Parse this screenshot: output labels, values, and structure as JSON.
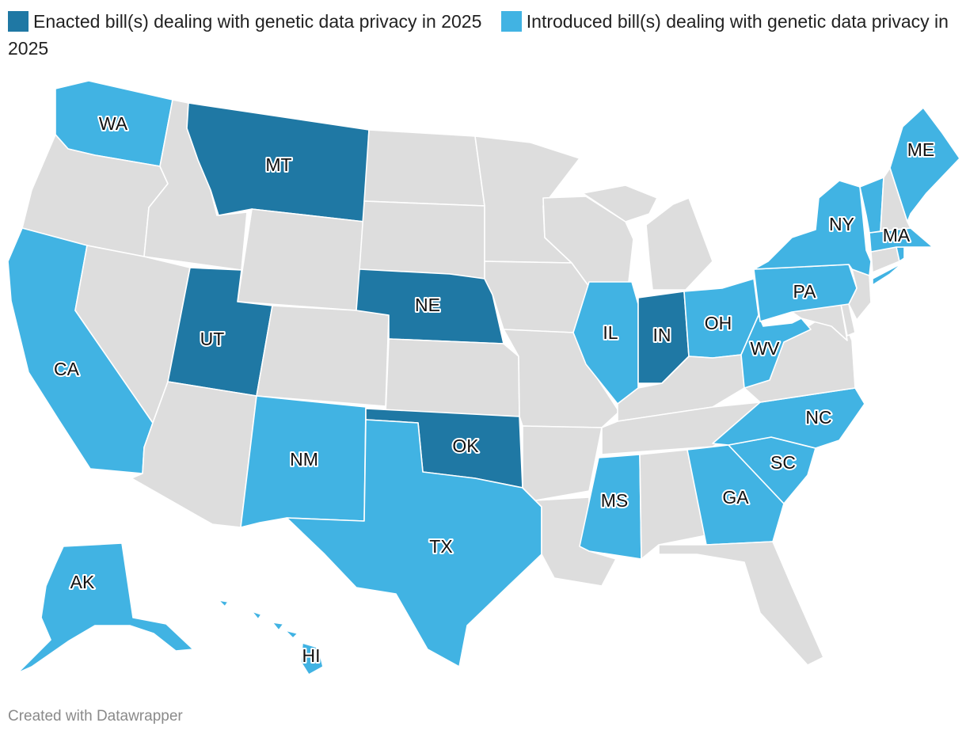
{
  "colors": {
    "enacted": "#1f78a4",
    "introduced": "#41b3e3",
    "none": "#dddddd",
    "label_text": "#111111",
    "label_halo": "#ffffff"
  },
  "legend": {
    "enacted": "Enacted bill(s) dealing with genetic data privacy in 2025",
    "introduced": "Introduced bill(s) dealing with genetic data privacy in 2025"
  },
  "credit": "Created with Datawrapper",
  "chart_data": {
    "type": "choropleth",
    "title": "",
    "categories": [
      "enacted",
      "introduced",
      "none"
    ],
    "states": [
      {
        "id": "WA",
        "status": "introduced",
        "label": "WA"
      },
      {
        "id": "OR",
        "status": "none",
        "label": ""
      },
      {
        "id": "CA",
        "status": "introduced",
        "label": "CA"
      },
      {
        "id": "ID",
        "status": "none",
        "label": ""
      },
      {
        "id": "NV",
        "status": "none",
        "label": ""
      },
      {
        "id": "MT",
        "status": "enacted",
        "label": "MT"
      },
      {
        "id": "WY",
        "status": "none",
        "label": ""
      },
      {
        "id": "UT",
        "status": "enacted",
        "label": "UT"
      },
      {
        "id": "AZ",
        "status": "none",
        "label": ""
      },
      {
        "id": "CO",
        "status": "none",
        "label": ""
      },
      {
        "id": "NM",
        "status": "introduced",
        "label": "NM"
      },
      {
        "id": "ND",
        "status": "none",
        "label": ""
      },
      {
        "id": "SD",
        "status": "none",
        "label": ""
      },
      {
        "id": "NE",
        "status": "enacted",
        "label": "NE"
      },
      {
        "id": "KS",
        "status": "none",
        "label": ""
      },
      {
        "id": "OK",
        "status": "enacted",
        "label": "OK"
      },
      {
        "id": "TX",
        "status": "introduced",
        "label": "TX"
      },
      {
        "id": "MN",
        "status": "none",
        "label": ""
      },
      {
        "id": "IA",
        "status": "none",
        "label": ""
      },
      {
        "id": "MO",
        "status": "none",
        "label": ""
      },
      {
        "id": "AR",
        "status": "none",
        "label": ""
      },
      {
        "id": "LA",
        "status": "none",
        "label": ""
      },
      {
        "id": "WI",
        "status": "none",
        "label": ""
      },
      {
        "id": "IL",
        "status": "introduced",
        "label": "IL"
      },
      {
        "id": "MI",
        "status": "none",
        "label": ""
      },
      {
        "id": "IN",
        "status": "enacted",
        "label": "IN"
      },
      {
        "id": "OH",
        "status": "introduced",
        "label": "OH"
      },
      {
        "id": "KY",
        "status": "none",
        "label": ""
      },
      {
        "id": "TN",
        "status": "none",
        "label": ""
      },
      {
        "id": "MS",
        "status": "introduced",
        "label": "MS"
      },
      {
        "id": "AL",
        "status": "none",
        "label": ""
      },
      {
        "id": "GA",
        "status": "introduced",
        "label": "GA"
      },
      {
        "id": "FL",
        "status": "none",
        "label": ""
      },
      {
        "id": "SC",
        "status": "introduced",
        "label": "SC"
      },
      {
        "id": "NC",
        "status": "introduced",
        "label": "NC"
      },
      {
        "id": "VA",
        "status": "none",
        "label": ""
      },
      {
        "id": "WV",
        "status": "introduced",
        "label": "WV"
      },
      {
        "id": "MD",
        "status": "none",
        "label": ""
      },
      {
        "id": "DE",
        "status": "none",
        "label": ""
      },
      {
        "id": "NJ",
        "status": "none",
        "label": ""
      },
      {
        "id": "PA",
        "status": "introduced",
        "label": "PA"
      },
      {
        "id": "NY",
        "status": "introduced",
        "label": "NY"
      },
      {
        "id": "CT",
        "status": "none",
        "label": ""
      },
      {
        "id": "RI",
        "status": "introduced",
        "label": ""
      },
      {
        "id": "MA",
        "status": "introduced",
        "label": "MA"
      },
      {
        "id": "VT",
        "status": "introduced",
        "label": ""
      },
      {
        "id": "NH",
        "status": "none",
        "label": ""
      },
      {
        "id": "ME",
        "status": "introduced",
        "label": "ME"
      },
      {
        "id": "AK",
        "status": "introduced",
        "label": "AK"
      },
      {
        "id": "HI",
        "status": "introduced",
        "label": "HI"
      }
    ]
  }
}
